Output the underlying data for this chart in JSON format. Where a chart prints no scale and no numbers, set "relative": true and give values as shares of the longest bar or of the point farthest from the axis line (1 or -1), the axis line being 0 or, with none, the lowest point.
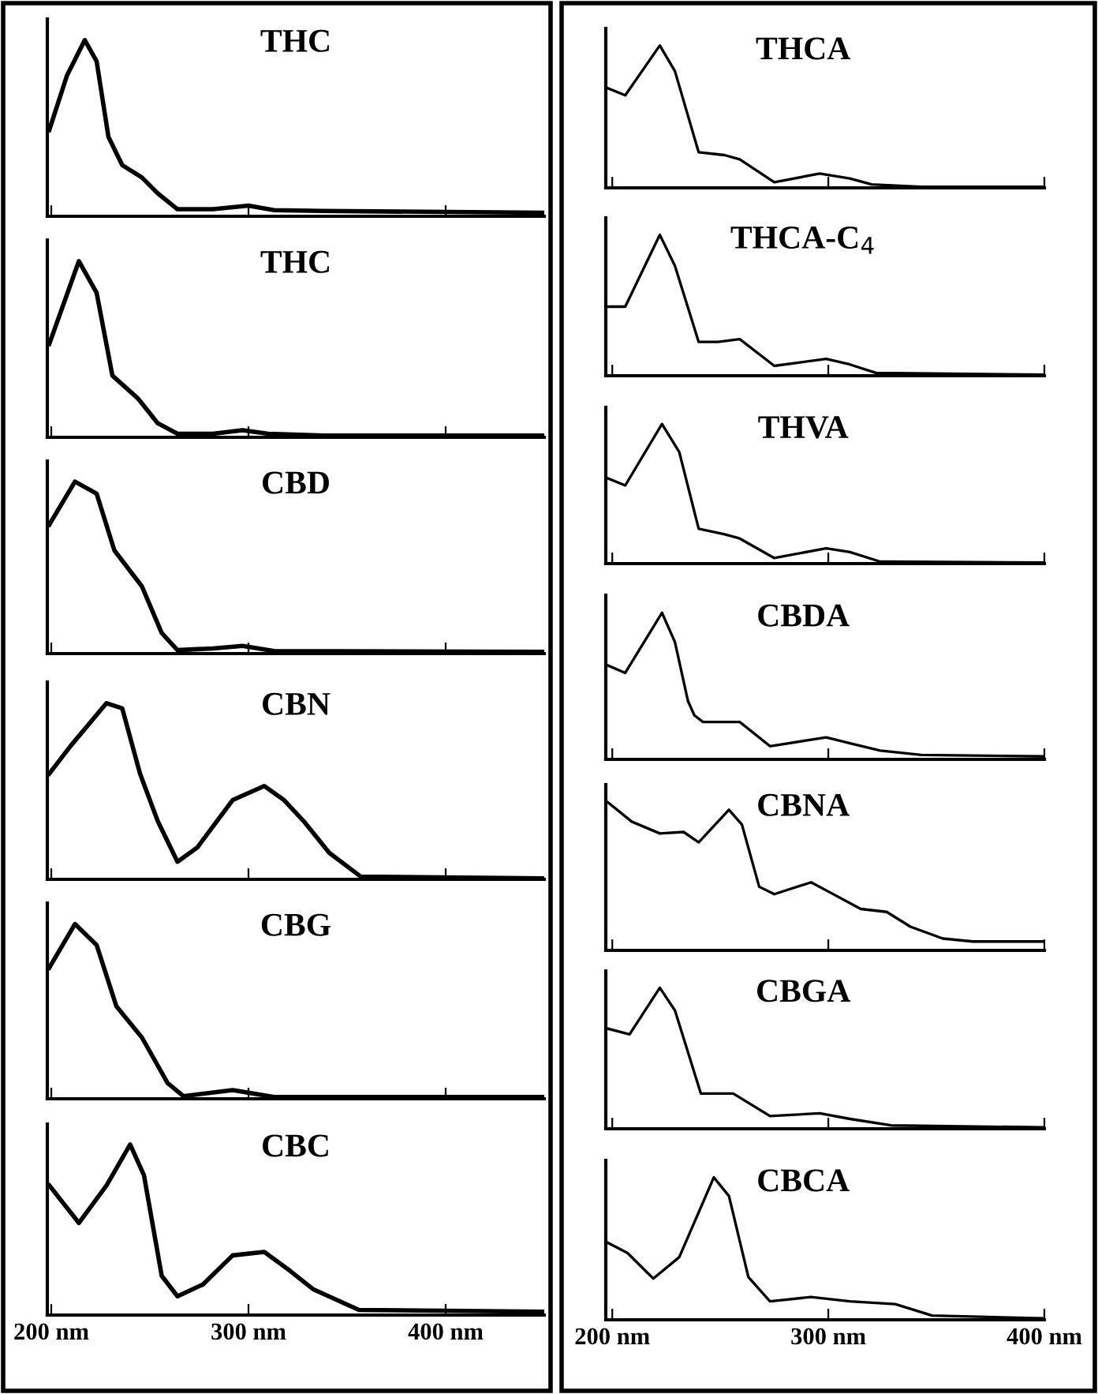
{
  "chart_data": [
    {
      "type": "line",
      "title": "THC",
      "relative": true,
      "xlim": [
        198,
        450
      ],
      "xticks": [
        200,
        300,
        400
      ],
      "tick_labels": false,
      "series": [
        {
          "color": "#000000",
          "x": [
            199,
            208,
            217,
            223,
            229,
            236,
            246,
            254,
            264,
            282,
            300,
            313,
            338,
            449
          ],
          "values": [
            0.49,
            0.8,
            1.0,
            0.88,
            0.45,
            0.29,
            0.22,
            0.13,
            0.04,
            0.04,
            0.06,
            0.035,
            0.03,
            0.02
          ]
        }
      ]
    },
    {
      "type": "line",
      "title": "THC",
      "relative": true,
      "xlim": [
        198,
        450
      ],
      "xticks": [
        200,
        300,
        400
      ],
      "tick_labels": false,
      "series": [
        {
          "color": "#000000",
          "x": [
            199,
            214,
            223,
            231,
            244,
            254,
            264,
            282,
            297,
            310,
            338,
            449
          ],
          "values": [
            0.53,
            1.0,
            0.82,
            0.35,
            0.22,
            0.08,
            0.02,
            0.02,
            0.04,
            0.02,
            0.01,
            0.01
          ]
        }
      ]
    },
    {
      "type": "line",
      "title": "CBD",
      "relative": true,
      "xlim": [
        198,
        450
      ],
      "xticks": [
        200,
        300,
        400
      ],
      "tick_labels": false,
      "series": [
        {
          "color": "#000000",
          "x": [
            199,
            212,
            223,
            232,
            246,
            256,
            264,
            282,
            297,
            313,
            449
          ],
          "values": [
            0.75,
            1.0,
            0.93,
            0.6,
            0.39,
            0.12,
            0.02,
            0.03,
            0.045,
            0.015,
            0.01
          ]
        }
      ]
    },
    {
      "type": "line",
      "title": "CBN",
      "relative": true,
      "xlim": [
        198,
        450
      ],
      "xticks": [
        200,
        300,
        400
      ],
      "tick_labels": false,
      "series": [
        {
          "color": "#000000",
          "x": [
            199,
            210,
            228,
            236,
            245,
            254,
            264,
            274,
            292,
            308,
            318,
            328,
            341,
            357,
            449
          ],
          "values": [
            0.6,
            0.76,
            1.0,
            0.97,
            0.6,
            0.33,
            0.1,
            0.18,
            0.45,
            0.53,
            0.45,
            0.33,
            0.15,
            0.015,
            0.006
          ]
        }
      ]
    },
    {
      "type": "line",
      "title": "CBG",
      "relative": true,
      "xlim": [
        198,
        450
      ],
      "xticks": [
        200,
        300,
        400
      ],
      "tick_labels": false,
      "series": [
        {
          "color": "#000000",
          "x": [
            199,
            212,
            223,
            233,
            246,
            259,
            267,
            292,
            313,
            449
          ],
          "values": [
            0.75,
            1.0,
            0.88,
            0.53,
            0.35,
            0.09,
            0.015,
            0.05,
            0.01,
            0.01
          ]
        }
      ]
    },
    {
      "type": "line",
      "title": "CBC",
      "relative": true,
      "xlim": [
        198,
        450
      ],
      "xticks": [
        {
          "value": 200,
          "label": "200 nm"
        },
        {
          "value": 300,
          "label": "300 nm"
        },
        {
          "value": 400,
          "label": "400 nm"
        }
      ],
      "series": [
        {
          "color": "#000000",
          "x": [
            199,
            214,
            228,
            240,
            247,
            256,
            264,
            277,
            292,
            308,
            321,
            333,
            356,
            449
          ],
          "values": [
            0.76,
            0.54,
            0.76,
            1.0,
            0.82,
            0.23,
            0.11,
            0.18,
            0.35,
            0.37,
            0.26,
            0.15,
            0.03,
            0.02
          ]
        }
      ]
    },
    {
      "type": "line",
      "title": "THCA",
      "relative": true,
      "xlim": [
        197,
        400
      ],
      "xticks": [
        200,
        300,
        400
      ],
      "tick_labels": false,
      "series": [
        {
          "color": "#000000",
          "x": [
            198,
            206,
            222,
            229,
            240,
            252,
            259,
            275,
            296,
            310,
            320,
            343,
            400
          ],
          "values": [
            0.7,
            0.65,
            1.0,
            0.82,
            0.25,
            0.23,
            0.2,
            0.04,
            0.1,
            0.066,
            0.024,
            0.007,
            0.007
          ]
        }
      ]
    },
    {
      "type": "line",
      "title": "THCA-C$_{4}$",
      "relative": true,
      "xlim": [
        197,
        400
      ],
      "xticks": [
        200,
        300,
        400
      ],
      "tick_labels": false,
      "series": [
        {
          "color": "#000000",
          "x": [
            198,
            206,
            222,
            229,
            240,
            249,
            259,
            275,
            299,
            310,
            322,
            400
          ],
          "values": [
            0.49,
            0.49,
            1.0,
            0.78,
            0.24,
            0.24,
            0.26,
            0.07,
            0.12,
            0.08,
            0.02,
            0.007
          ]
        }
      ]
    },
    {
      "type": "line",
      "title": "THVA",
      "relative": true,
      "xlim": [
        197,
        400
      ],
      "xticks": [
        200,
        300,
        400
      ],
      "tick_labels": false,
      "series": [
        {
          "color": "#000000",
          "x": [
            198,
            206,
            223,
            231,
            240,
            252,
            259,
            275,
            299,
            310,
            324,
            400
          ],
          "values": [
            0.61,
            0.56,
            1.0,
            0.8,
            0.25,
            0.21,
            0.18,
            0.04,
            0.11,
            0.083,
            0.014,
            0.007
          ]
        }
      ]
    },
    {
      "type": "line",
      "title": "CBDA",
      "relative": true,
      "xlim": [
        197,
        400
      ],
      "xticks": [
        200,
        300,
        400
      ],
      "tick_labels": false,
      "series": [
        {
          "color": "#000000",
          "x": [
            198,
            206,
            223,
            229,
            235,
            238,
            242,
            259,
            273,
            299,
            310,
            324,
            343,
            400
          ],
          "values": [
            0.64,
            0.59,
            1.0,
            0.8,
            0.4,
            0.3,
            0.255,
            0.255,
            0.09,
            0.15,
            0.11,
            0.06,
            0.03,
            0.02
          ]
        }
      ]
    },
    {
      "type": "line",
      "title": "CBNA",
      "relative": true,
      "xlim": [
        197,
        400
      ],
      "xticks": [
        200,
        300,
        400
      ],
      "tick_labels": false,
      "series": [
        {
          "color": "#000000",
          "x": [
            198,
            209,
            222,
            233,
            240,
            254,
            260,
            268,
            275,
            292,
            301,
            315,
            327,
            338,
            353,
            367,
            400
          ],
          "values": [
            1.0,
            0.87,
            0.79,
            0.8,
            0.73,
            0.95,
            0.85,
            0.43,
            0.38,
            0.46,
            0.39,
            0.28,
            0.26,
            0.16,
            0.08,
            0.06,
            0.06
          ]
        }
      ]
    },
    {
      "type": "line",
      "title": "CBGA",
      "relative": true,
      "xlim": [
        197,
        400
      ],
      "xticks": [
        200,
        300,
        400
      ],
      "tick_labels": false,
      "series": [
        {
          "color": "#000000",
          "x": [
            198,
            208,
            222,
            229,
            241,
            256,
            273,
            296,
            310,
            329,
            400
          ],
          "values": [
            0.71,
            0.67,
            1.0,
            0.84,
            0.25,
            0.25,
            0.09,
            0.11,
            0.07,
            0.024,
            0.01
          ]
        }
      ]
    },
    {
      "type": "line",
      "title": "CBCA",
      "relative": true,
      "xlim": [
        197,
        400
      ],
      "xticks": [
        {
          "value": 200,
          "label": "200 nm"
        },
        {
          "value": 300,
          "label": "300 nm"
        },
        {
          "value": 400,
          "label": "400 nm"
        }
      ],
      "series": [
        {
          "color": "#000000",
          "x": [
            198,
            207,
            219,
            231,
            247,
            254,
            263,
            273,
            292,
            310,
            331,
            348,
            400
          ],
          "values": [
            0.54,
            0.47,
            0.29,
            0.44,
            1.0,
            0.87,
            0.3,
            0.13,
            0.16,
            0.13,
            0.11,
            0.03,
            0.01
          ]
        }
      ]
    }
  ]
}
